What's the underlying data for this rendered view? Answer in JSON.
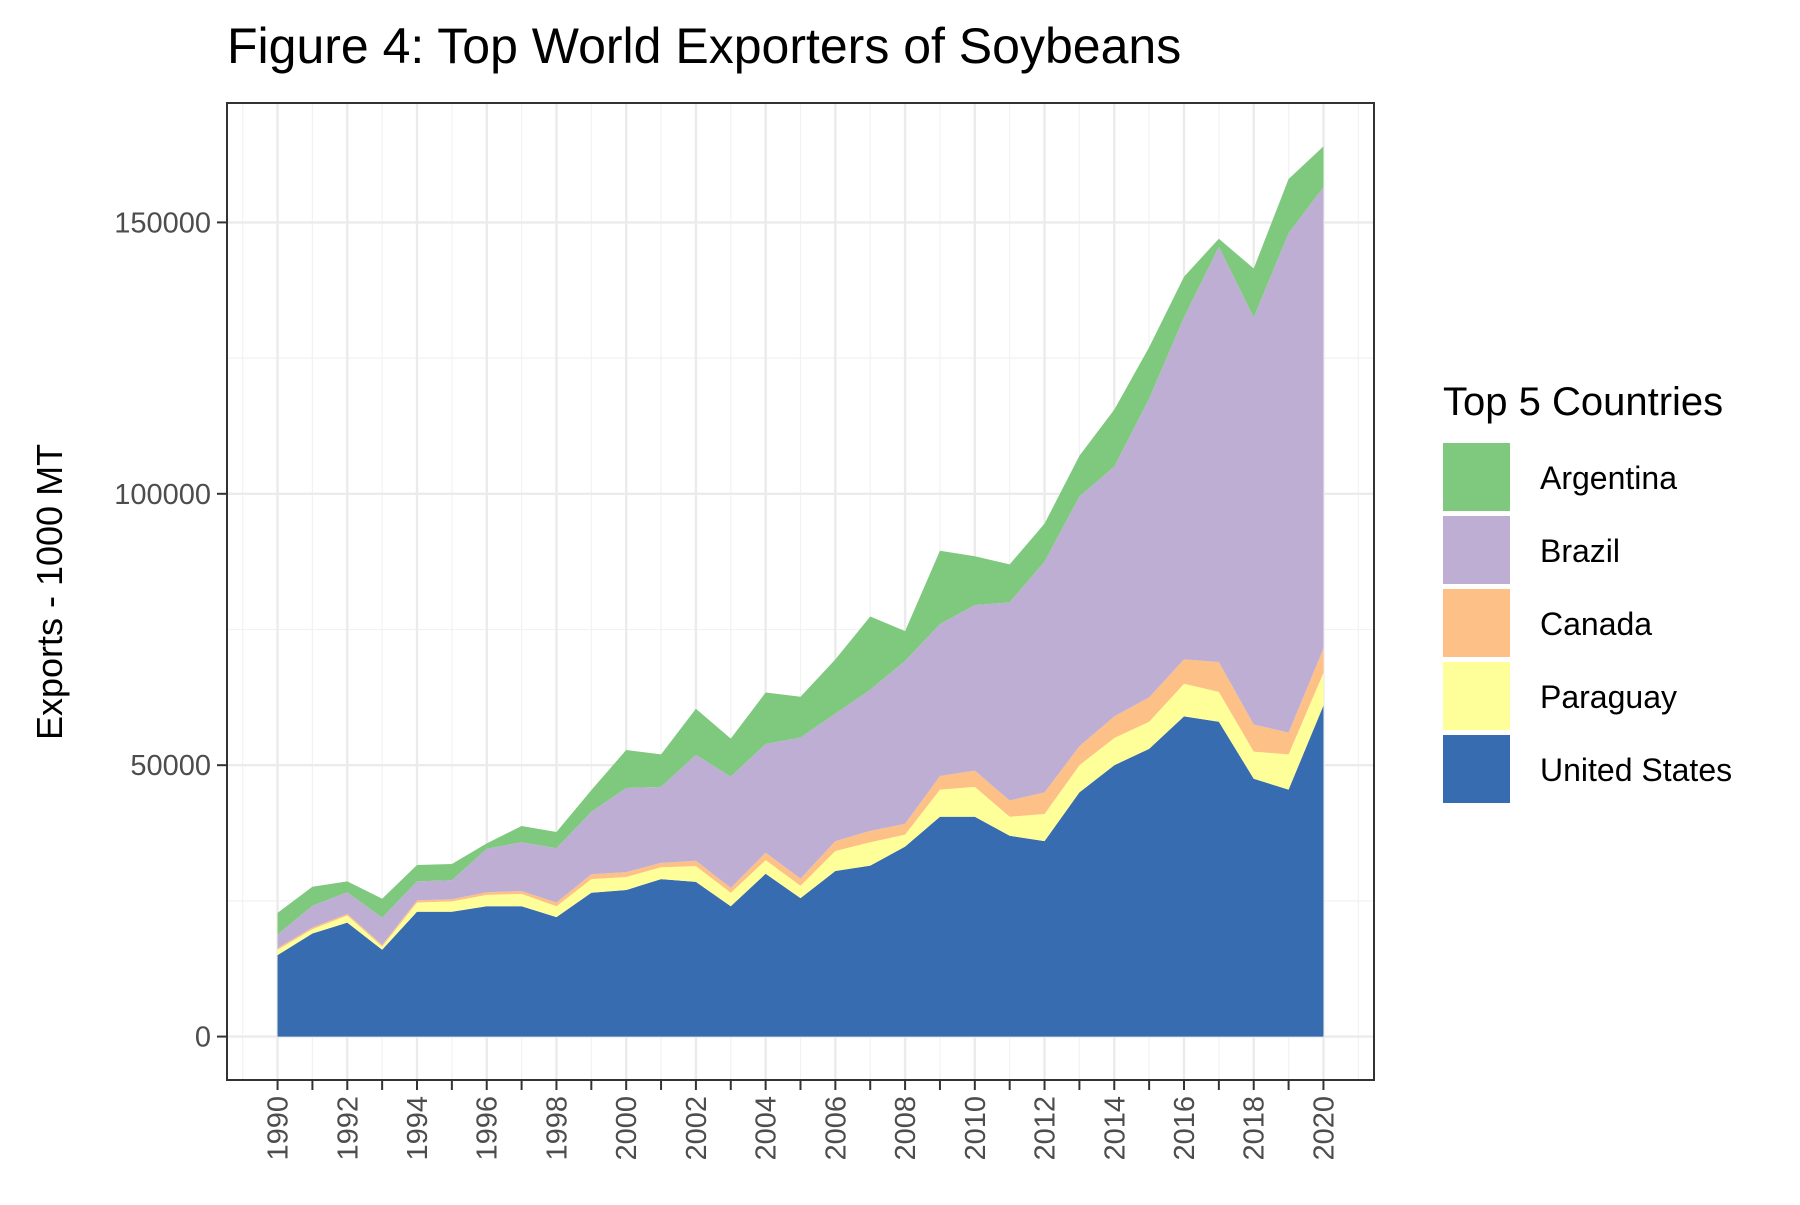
{
  "chart_data": {
    "type": "area",
    "stacked": true,
    "title": "Figure 4: Top World Exporters of Soybeans",
    "xlabel": "",
    "ylabel": "Exports - 1000 MT",
    "x": [
      1990,
      1991,
      1992,
      1993,
      1994,
      1995,
      1996,
      1997,
      1998,
      1999,
      2000,
      2001,
      2002,
      2003,
      2004,
      2005,
      2006,
      2007,
      2008,
      2009,
      2010,
      2011,
      2012,
      2013,
      2014,
      2015,
      2016,
      2017,
      2018,
      2019,
      2020
    ],
    "x_ticks": [
      "1990",
      "1992",
      "1994",
      "1996",
      "1998",
      "2000",
      "2002",
      "2004",
      "2006",
      "2008",
      "2010",
      "2012",
      "2014",
      "2016",
      "2018",
      "2020"
    ],
    "y_ticks": [
      "0",
      "50000",
      "100000",
      "150000"
    ],
    "xlim": [
      1988.55,
      2021.45
    ],
    "ylim": [
      -8000,
      172000
    ],
    "grid": true,
    "legend": {
      "title": "Top 5 Countries",
      "position": "right"
    },
    "stack_order": [
      "United States",
      "Paraguay",
      "Canada",
      "Brazil",
      "Argentina"
    ],
    "series": [
      {
        "name": "United States",
        "color": "#386CB0",
        "values": [
          15000,
          19000,
          21000,
          16000,
          23000,
          23000,
          24000,
          24000,
          22000,
          26500,
          27000,
          29000,
          28500,
          24000,
          30000,
          25500,
          30500,
          31500,
          35000,
          40500,
          40500,
          37000,
          36000,
          45000,
          50000,
          53000,
          59000,
          58000,
          47500,
          45500,
          61000
        ]
      },
      {
        "name": "Paraguay",
        "color": "#FFFF99",
        "values": [
          1000,
          800,
          1300,
          600,
          1700,
          1900,
          2100,
          2300,
          2000,
          2500,
          2400,
          2200,
          2900,
          2500,
          2500,
          2300,
          3700,
          4300,
          2200,
          5000,
          5500,
          3500,
          5000,
          5000,
          5000,
          5000,
          6000,
          5500,
          5000,
          6500,
          6000
        ]
      },
      {
        "name": "Canada",
        "color": "#FDC086",
        "values": [
          300,
          300,
          300,
          300,
          400,
          400,
          500,
          500,
          700,
          900,
          900,
          800,
          1000,
          900,
          1400,
          1300,
          1800,
          2100,
          2000,
          2500,
          3000,
          3000,
          4000,
          3500,
          4000,
          4500,
          4500,
          5500,
          5000,
          4000,
          4500
        ]
      },
      {
        "name": "Brazil",
        "color": "#BEAED4",
        "values": [
          2500,
          4000,
          4000,
          5000,
          3500,
          3500,
          8000,
          9000,
          10000,
          11500,
          15500,
          14000,
          19500,
          20500,
          20000,
          26000,
          23500,
          26000,
          30000,
          28000,
          30500,
          36500,
          42500,
          46000,
          46000,
          55000,
          63000,
          76500,
          75000,
          92000,
          85000
        ]
      },
      {
        "name": "Argentina",
        "color": "#7FC97F",
        "values": [
          4000,
          3500,
          2000,
          3500,
          3000,
          3000,
          1000,
          3000,
          3000,
          4000,
          7000,
          6000,
          8500,
          7000,
          9500,
          7500,
          10000,
          13500,
          5500,
          13500,
          9000,
          7000,
          7000,
          7500,
          10500,
          9500,
          7500,
          1500,
          9000,
          10000,
          7500
        ]
      }
    ]
  }
}
